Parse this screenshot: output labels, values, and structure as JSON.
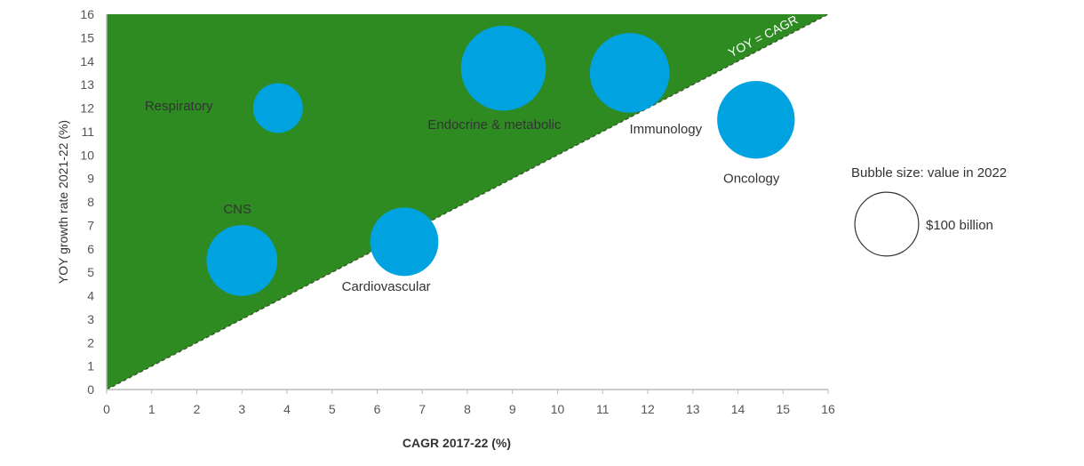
{
  "chart_data": {
    "type": "scatter",
    "subtype": "bubble",
    "xlabel": "CAGR 2017-22 (%)",
    "ylabel": "YOY growth rate 2021-22 (%)",
    "xlim": [
      0,
      16
    ],
    "ylim": [
      0,
      16
    ],
    "x_ticks": [
      "0",
      "1",
      "2",
      "3",
      "4",
      "5",
      "6",
      "7",
      "8",
      "9",
      "10",
      "11",
      "12",
      "13",
      "14",
      "15",
      "16"
    ],
    "y_ticks": [
      "0",
      "1",
      "2",
      "3",
      "4",
      "5",
      "6",
      "7",
      "8",
      "9",
      "10",
      "11",
      "12",
      "13",
      "14",
      "15",
      "16"
    ],
    "reference_line": {
      "label": "YOY = CAGR",
      "from": [
        0,
        0
      ],
      "to": [
        16,
        16
      ],
      "style": "dashed"
    },
    "region_above_line_color": "#2e8b22",
    "bubble_color": "#00a3e0",
    "points": [
      {
        "label": "Respiratory",
        "x": 3.8,
        "y": 12.0,
        "size_bn": 37
      },
      {
        "label": "Endocrine & metabolic",
        "x": 8.8,
        "y": 13.7,
        "size_bn": 108
      },
      {
        "label": "Immunology",
        "x": 11.6,
        "y": 13.5,
        "size_bn": 95
      },
      {
        "label": "Oncology",
        "x": 14.4,
        "y": 11.5,
        "size_bn": 90
      },
      {
        "label": "CNS",
        "x": 3.0,
        "y": 5.5,
        "size_bn": 75
      },
      {
        "label": "Cardiovascular",
        "x": 6.6,
        "y": 6.3,
        "size_bn": 70
      }
    ],
    "legend": {
      "title": "Bubble size: value in 2022",
      "reference_label": "$100 billion",
      "reference_value_bn": 100
    }
  }
}
